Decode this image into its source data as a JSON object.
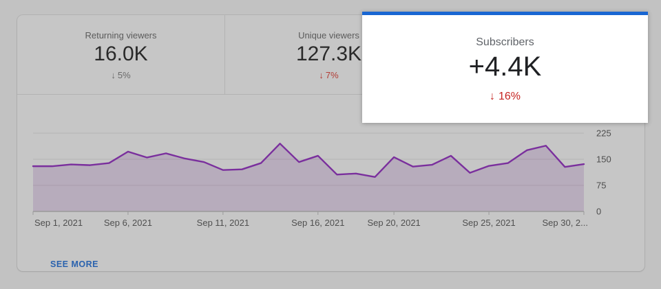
{
  "metrics_row": [
    {
      "title": "Returning viewers",
      "value": "16.0K",
      "delta_arrow": "↓",
      "delta": "5%",
      "delta_tone": "neutral"
    },
    {
      "title": "Unique viewers",
      "value": "127.3K",
      "delta_arrow": "↓",
      "delta": "7%",
      "delta_tone": "negative"
    }
  ],
  "highlight_card": {
    "title": "Subscribers",
    "value": "+4.4K",
    "delta_arrow": "↓",
    "delta": "16%",
    "accent_color": "#1966d2",
    "delta_color": "#c5221f"
  },
  "footer": {
    "see_more_label": "SEE MORE"
  },
  "colors": {
    "accent_blue": "#1966d2",
    "negative_red": "#c5221f",
    "dim_negative_red": "#b23c35",
    "line_purple": "#7a2f9d",
    "dim_background": "#c6c6c6"
  },
  "chart_data": {
    "type": "area",
    "title": "",
    "xlabel": "",
    "ylabel": "",
    "categories": [
      "Sep 1, 2021",
      "Sep 2, 2021",
      "Sep 3, 2021",
      "Sep 4, 2021",
      "Sep 5, 2021",
      "Sep 6, 2021",
      "Sep 7, 2021",
      "Sep 8, 2021",
      "Sep 9, 2021",
      "Sep 10, 2021",
      "Sep 11, 2021",
      "Sep 12, 2021",
      "Sep 13, 2021",
      "Sep 14, 2021",
      "Sep 15, 2021",
      "Sep 16, 2021",
      "Sep 17, 2021",
      "Sep 18, 2021",
      "Sep 19, 2021",
      "Sep 20, 2021",
      "Sep 21, 2021",
      "Sep 22, 2021",
      "Sep 23, 2021",
      "Sep 24, 2021",
      "Sep 25, 2021",
      "Sep 26, 2021",
      "Sep 27, 2021",
      "Sep 28, 2021",
      "Sep 29, 2021",
      "Sep 30, 2021"
    ],
    "values": [
      130,
      130,
      135,
      133,
      139,
      172,
      155,
      167,
      152,
      142,
      119,
      121,
      139,
      195,
      142,
      160,
      106,
      109,
      99,
      156,
      129,
      134,
      160,
      111,
      131,
      139,
      176,
      189,
      128,
      136
    ],
    "ylim": [
      0,
      235
    ],
    "y_ticks": [
      0,
      75,
      150,
      225
    ],
    "x_ticks": [
      {
        "day": 0,
        "label": "Sep 1, 2021",
        "align": "left"
      },
      {
        "day": 5,
        "label": "Sep 6, 2021"
      },
      {
        "day": 10,
        "label": "Sep 11, 2021"
      },
      {
        "day": 15,
        "label": "Sep 16, 2021"
      },
      {
        "day": 19,
        "label": "Sep 20, 2021"
      },
      {
        "day": 24,
        "label": "Sep 25, 2021"
      },
      {
        "day": 29,
        "label": "Sep 30, 2...",
        "align": "right"
      }
    ],
    "grid": true,
    "legend": false,
    "line_color": "#7a2f9d",
    "fill_color": "rgba(110,45,145,0.17)"
  }
}
